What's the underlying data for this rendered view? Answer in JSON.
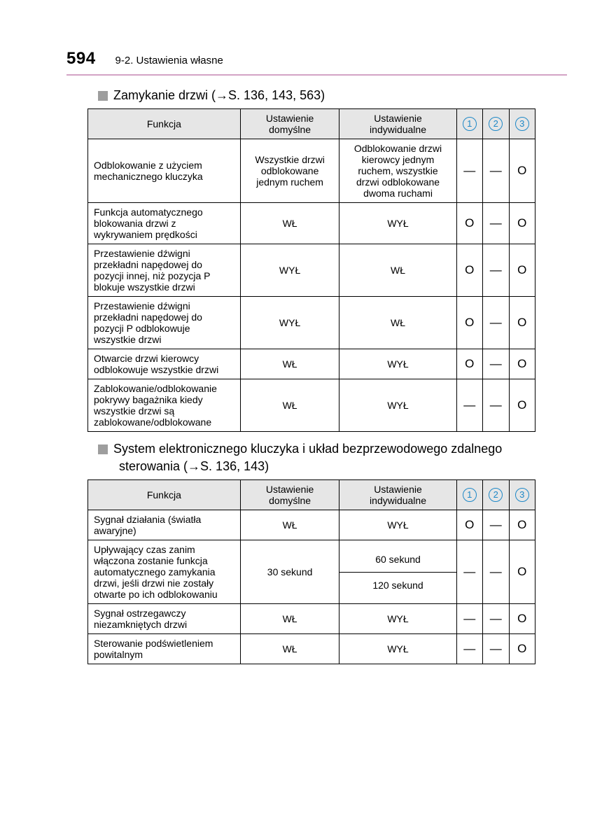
{
  "page_number": "594",
  "breadcrumb": "9-2. Ustawienia własne",
  "colors": {
    "rule": "#d3a3c5",
    "header_bg": "#e6e6e6",
    "circle": "#1e88c7",
    "bullet": "#9e9e9e"
  },
  "symbols": {
    "o": "O",
    "dash": "—"
  },
  "circled_headers": [
    "1",
    "2",
    "3"
  ],
  "columns": {
    "func": "Funkcja",
    "default": "Ustawienie domyślne",
    "custom": "Ustawienie indywidualne"
  },
  "section1": {
    "title_pre": "Zamykanie drzwi (",
    "title_ref": "S. 136, 143, 563",
    "title_post": ")",
    "rows": [
      {
        "func": "Odblokowanie z użyciem mechanicznego kluczyka",
        "default": "Wszystkie drzwi odblokowane jednym ruchem",
        "custom": "Odblokowanie drzwi kierowcy jednym ruchem, wszystkie drzwi odblokowane dwoma ruchami",
        "c1": "dash",
        "c2": "dash",
        "c3": "o"
      },
      {
        "func": "Funkcja automatycznego blokowania drzwi z wykrywaniem prędkości",
        "default": "WŁ",
        "custom": "WYŁ",
        "c1": "o",
        "c2": "dash",
        "c3": "o"
      },
      {
        "func": "Przestawienie dźwigni przekładni napędowej do pozycji innej, niż pozycja P blokuje wszystkie drzwi",
        "default": "WYŁ",
        "custom": "WŁ",
        "c1": "o",
        "c2": "dash",
        "c3": "o"
      },
      {
        "func": "Przestawienie dźwigni przekładni napędowej do pozycji P odblokowuje wszystkie drzwi",
        "default": "WYŁ",
        "custom": "WŁ",
        "c1": "o",
        "c2": "dash",
        "c3": "o"
      },
      {
        "func": "Otwarcie drzwi kierowcy odblokowuje wszystkie drzwi",
        "default": "WŁ",
        "custom": "WYŁ",
        "c1": "o",
        "c2": "dash",
        "c3": "o"
      },
      {
        "func": "Zablokowanie/odblokowanie pokrywy bagażnika kiedy wszystkie drzwi są zablokowane/odblokowane",
        "default": "WŁ",
        "custom": "WYŁ",
        "c1": "dash",
        "c2": "dash",
        "c3": "o"
      }
    ]
  },
  "section2": {
    "title_line1_pre": "System elektronicznego kluczyka i układ bezprzewodowego zdalnego",
    "title_line2_pre": "sterowania (",
    "title_ref": "S. 136, 143",
    "title_post": ")",
    "rows": [
      {
        "func": "Sygnał działania (światła awaryjne)",
        "default": "WŁ",
        "custom": "WYŁ",
        "c1": "o",
        "c2": "dash",
        "c3": "o"
      },
      {
        "func": "Upływający czas zanim włączona zostanie funkcja automatycznego zamykania drzwi, jeśli drzwi nie zostały otwarte po ich odblokowaniu",
        "default": "30 sekund",
        "custom_multi": [
          "60 sekund",
          "120 sekund"
        ],
        "c1": "dash",
        "c2": "dash",
        "c3": "o"
      },
      {
        "func": "Sygnał ostrzegawczy niezamkniętych drzwi",
        "default": "WŁ",
        "custom": "WYŁ",
        "c1": "dash",
        "c2": "dash",
        "c3": "o"
      },
      {
        "func": "Sterowanie podświetleniem powitalnym",
        "default": "WŁ",
        "custom": "WYŁ",
        "c1": "dash",
        "c2": "dash",
        "c3": "o"
      }
    ]
  }
}
